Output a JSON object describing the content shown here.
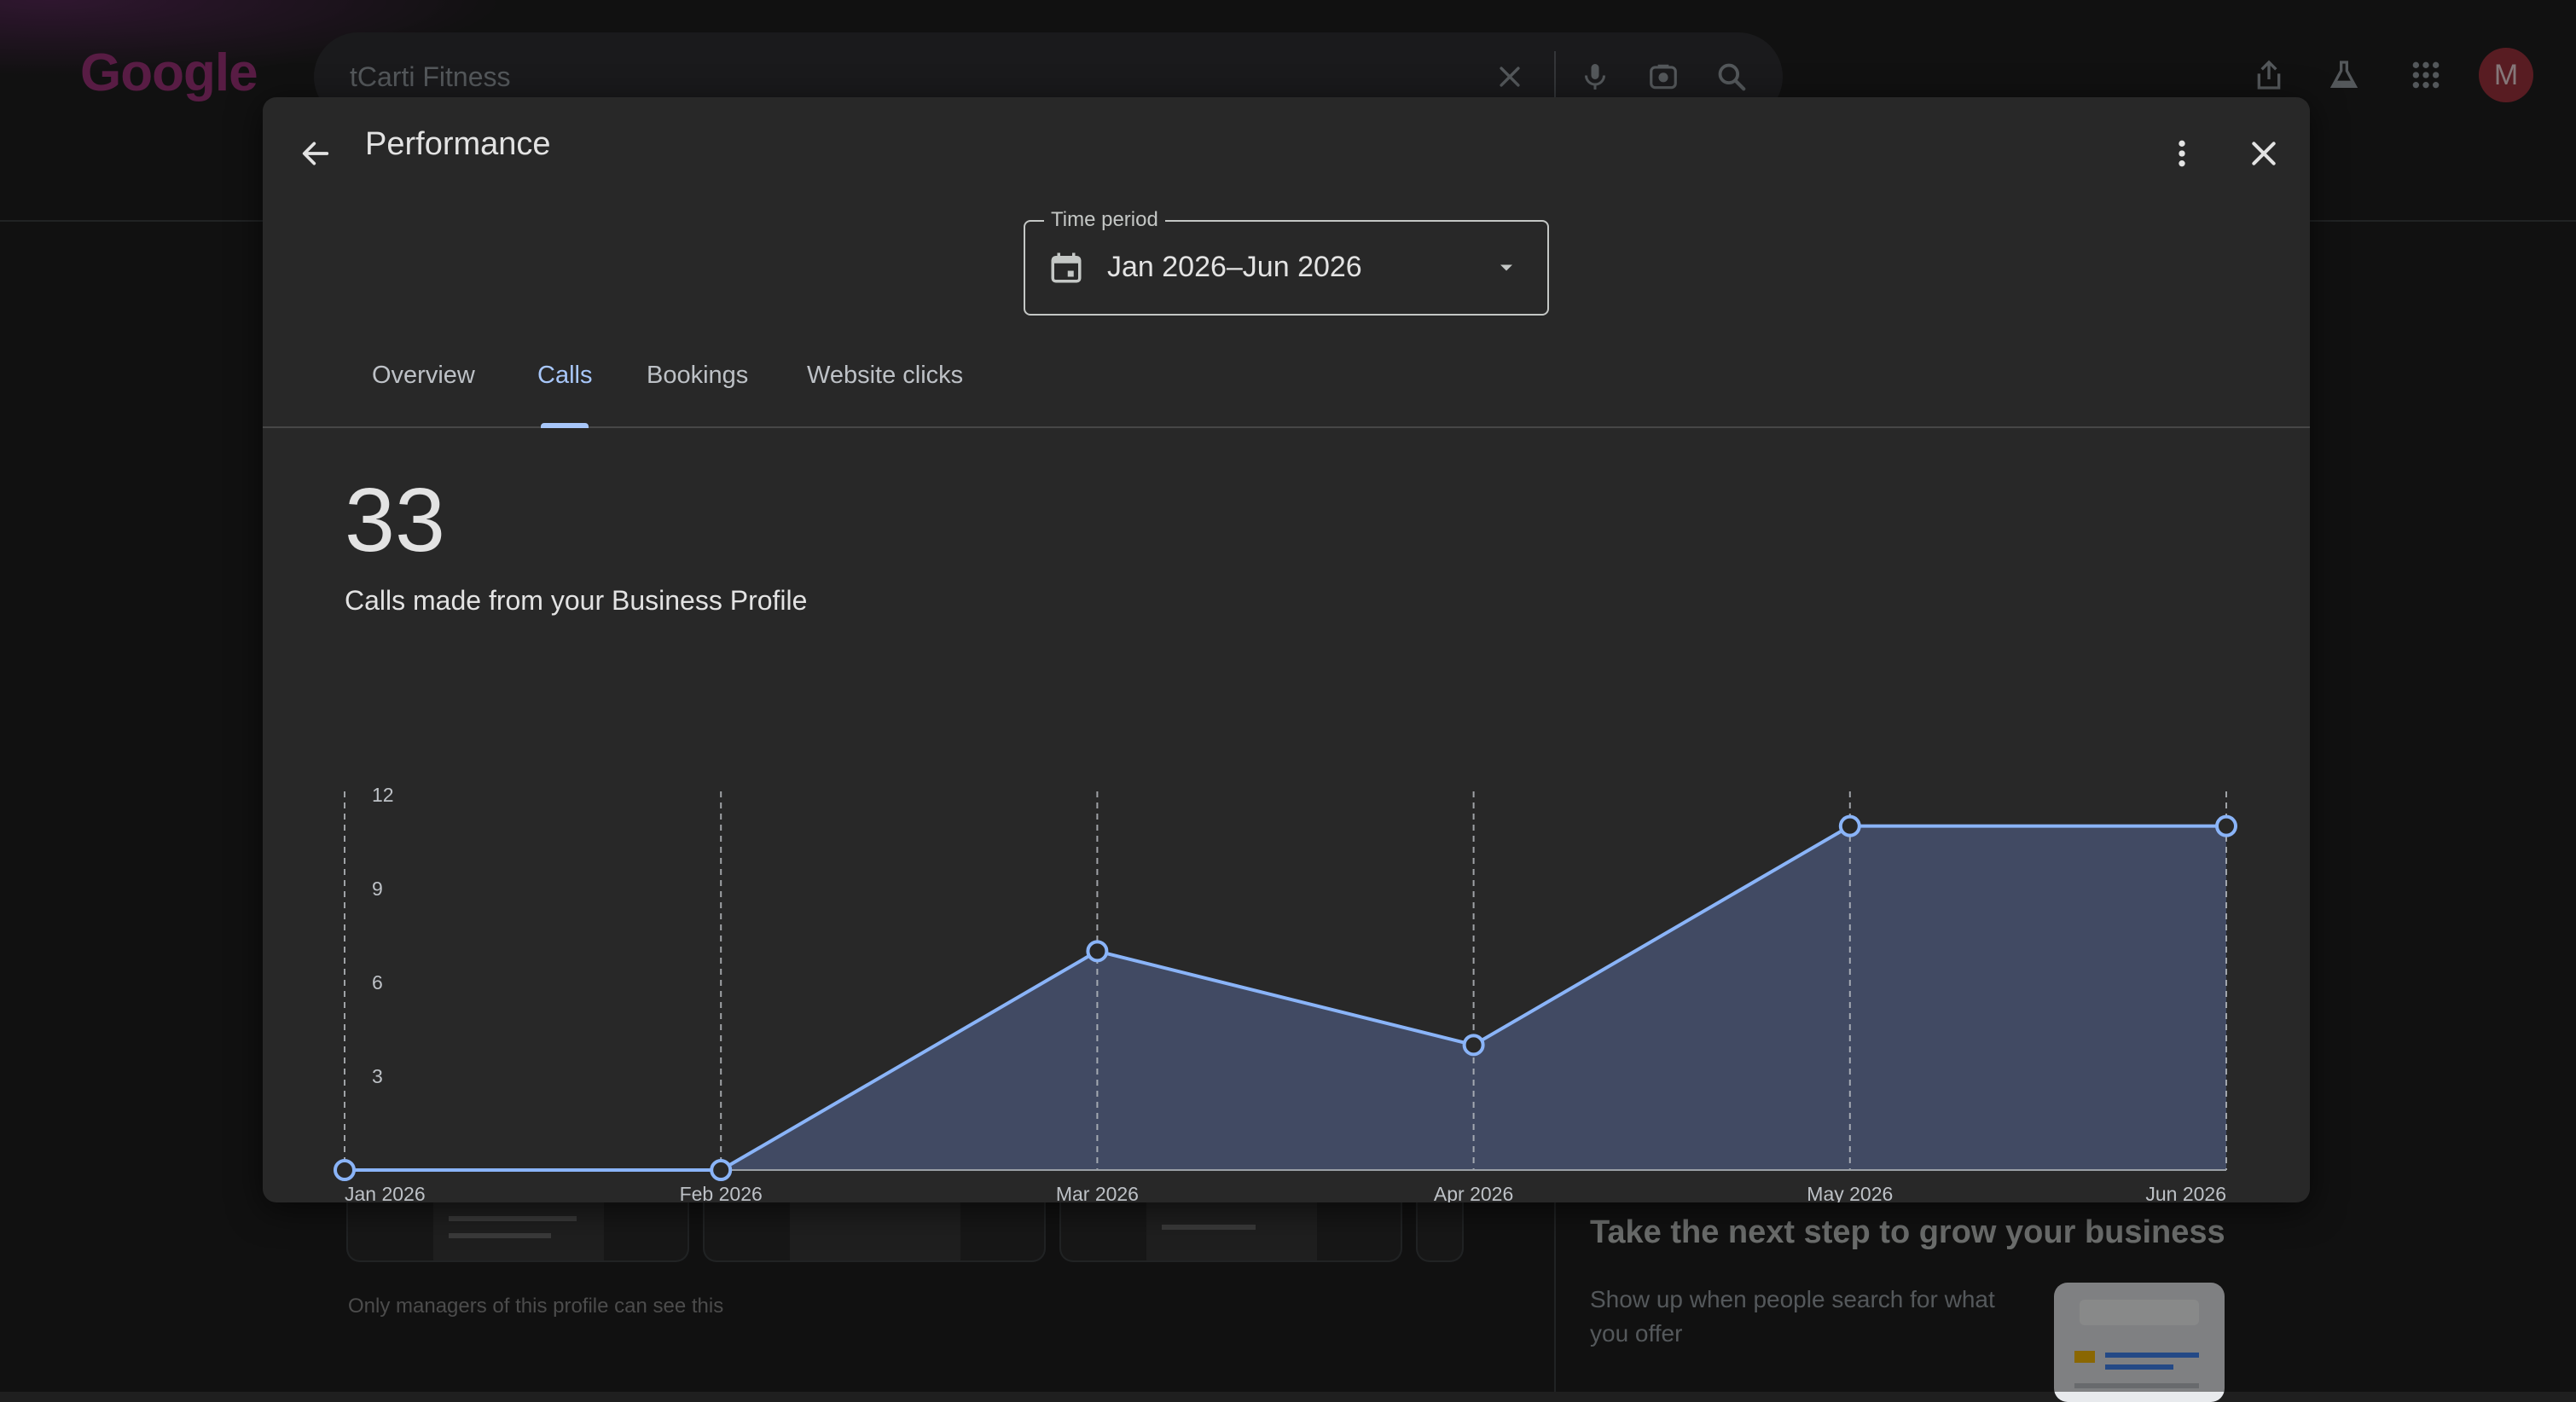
{
  "browser": {
    "logo_text": "Google",
    "search_query": "tCarti Fitness",
    "avatar_letter": "M",
    "icons": [
      "clear-icon",
      "mic-icon",
      "lens-icon",
      "search-icon",
      "share-icon",
      "labs-icon",
      "apps-icon"
    ]
  },
  "background": {
    "managers_note": "Only managers of this profile can see this",
    "grow_title": "Take the next step to grow your business",
    "grow_desc": "Show up when people search for what you offer"
  },
  "dialog": {
    "title": "Performance",
    "time_period": {
      "label": "Time period",
      "value": "Jan 2026–Jun 2026"
    },
    "tabs": [
      {
        "label": "Overview",
        "active": false
      },
      {
        "label": "Calls",
        "active": true
      },
      {
        "label": "Bookings",
        "active": false
      },
      {
        "label": "Website clicks",
        "active": false
      }
    ],
    "metric": {
      "value": "33",
      "description": "Calls made from your Business Profile"
    }
  },
  "colors": {
    "accent": "#a8c7fa",
    "line": "#8ab4f8",
    "area_fill": "#414a63",
    "avatar": "#a0343e"
  },
  "chart_data": {
    "type": "area",
    "x": [
      "Jan 2026",
      "Feb 2026",
      "Mar 2026",
      "Apr 2026",
      "May 2026",
      "Jun 2026"
    ],
    "series": [
      {
        "values": [
          0,
          0,
          7,
          4,
          11,
          11
        ]
      }
    ],
    "yticks": [
      3,
      6,
      9,
      12
    ],
    "ylim": [
      0,
      12
    ],
    "grid": "vertical-dashed",
    "legend": "none"
  }
}
